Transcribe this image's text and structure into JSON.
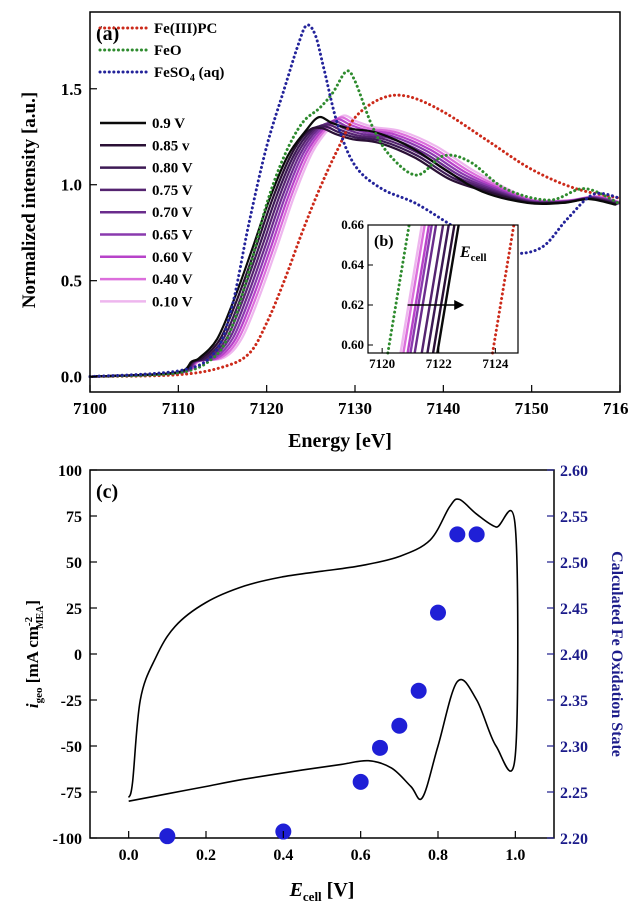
{
  "chart_data": [
    {
      "type": "line",
      "panel_label": "(a)",
      "xlabel": "Energy [eV]",
      "ylabel": "Normalized intensity [a.u.]",
      "xlim": [
        7100,
        7160
      ],
      "ylim": [
        -0.08,
        1.9
      ],
      "xticks": [
        "7100",
        "7110",
        "7120",
        "7130",
        "7140",
        "7150",
        "7160"
      ],
      "yticks": [
        "0.0",
        "0.5",
        "1.0",
        "1.5"
      ],
      "references": [
        {
          "name": "Fe(III)PC",
          "color": "#cc2a1a",
          "style": "dotted"
        },
        {
          "name": "FeO",
          "color": "#2e8b2e",
          "style": "dotted"
        },
        {
          "name": "FeSO",
          "name_sub": "4",
          "name_suffix": " (aq)",
          "color": "#23239a",
          "style": "dotted"
        }
      ],
      "potentials": [
        {
          "name": "0.9 V",
          "color": "#0a0a0a"
        },
        {
          "name": "0.85 v",
          "color": "#2a1035"
        },
        {
          "name": "0.80 V",
          "color": "#3d1a55"
        },
        {
          "name": "0.75 V",
          "color": "#552470"
        },
        {
          "name": "0.70 V",
          "color": "#6a2c8c"
        },
        {
          "name": "0.65 V",
          "color": "#8a3aae"
        },
        {
          "name": "0.60 V",
          "color": "#b743c9"
        },
        {
          "name": "0.40 V",
          "color": "#dc6fdc"
        },
        {
          "name": "0.10 V",
          "color": "#eeb6ee"
        }
      ],
      "curves": {
        "Fe(III)PC": [
          [
            7100,
            0
          ],
          [
            7110,
            0.01
          ],
          [
            7115,
            0.05
          ],
          [
            7118,
            0.12
          ],
          [
            7120,
            0.28
          ],
          [
            7122,
            0.5
          ],
          [
            7124,
            0.75
          ],
          [
            7126,
            0.98
          ],
          [
            7128,
            1.18
          ],
          [
            7130,
            1.35
          ],
          [
            7133,
            1.45
          ],
          [
            7136,
            1.46
          ],
          [
            7140,
            1.38
          ],
          [
            7145,
            1.23
          ],
          [
            7150,
            1.08
          ],
          [
            7155,
            0.98
          ],
          [
            7160,
            0.93
          ]
        ],
        "FeO": [
          [
            7100,
            0
          ],
          [
            7110,
            0.02
          ],
          [
            7114,
            0.1
          ],
          [
            7116,
            0.25
          ],
          [
            7118,
            0.55
          ],
          [
            7120,
            0.9
          ],
          [
            7122,
            1.15
          ],
          [
            7124,
            1.32
          ],
          [
            7126,
            1.4
          ],
          [
            7127.5,
            1.48
          ],
          [
            7129,
            1.59
          ],
          [
            7130,
            1.54
          ],
          [
            7132,
            1.3
          ],
          [
            7134,
            1.15
          ],
          [
            7137,
            1.05
          ],
          [
            7140,
            1.15
          ],
          [
            7143,
            1.12
          ],
          [
            7147,
            0.98
          ],
          [
            7152,
            0.92
          ],
          [
            7156,
            0.98
          ],
          [
            7160,
            0.9
          ]
        ],
        "FeSO4": [
          [
            7100,
            0
          ],
          [
            7110,
            0.03
          ],
          [
            7114,
            0.12
          ],
          [
            7116,
            0.35
          ],
          [
            7118,
            0.8
          ],
          [
            7120,
            1.2
          ],
          [
            7122,
            1.5
          ],
          [
            7123.5,
            1.72
          ],
          [
            7124.5,
            1.83
          ],
          [
            7125.5,
            1.78
          ],
          [
            7126.5,
            1.6
          ],
          [
            7128,
            1.32
          ],
          [
            7130,
            1.1
          ],
          [
            7133,
            0.98
          ],
          [
            7137,
            0.9
          ],
          [
            7142,
            0.76
          ],
          [
            7147,
            0.65
          ],
          [
            7151,
            0.67
          ],
          [
            7154,
            0.82
          ],
          [
            7157,
            0.95
          ],
          [
            7160,
            0.93
          ]
        ]
      },
      "inset": {
        "label": "(b)",
        "annotation": "E",
        "annotation_sub": "cell",
        "xlim": [
          7119.5,
          7124.8
        ],
        "ylim": [
          0.596,
          0.66
        ],
        "xticks": [
          "7120",
          "7122",
          "7124"
        ],
        "yticks": [
          "0.60",
          "0.62",
          "0.64",
          "0.66"
        ],
        "crossings_at_0_63": {
          "FeO": 7120.6,
          "0.10 V": 7121.05,
          "0.40 V": 7121.15,
          "0.60 V": 7121.3,
          "0.65 V": 7121.4,
          "0.70 V": 7121.55,
          "0.75 V": 7121.8,
          "0.80 V": 7122.0,
          "0.85 v": 7122.2,
          "0.9 V": 7122.35,
          "Fe(III)PC": 7124.3
        },
        "arrow": {
          "from": 7120.9,
          "to": 7122.9,
          "y": 0.62
        }
      }
    },
    {
      "type": "line+scatter",
      "panel_label": "(c)",
      "xlabel": "E",
      "xlabel_sub": "cell",
      "xlabel_suffix": " [V]",
      "ylabel": "i",
      "ylabel_sub": "geo",
      "ylabel_unit_pre": " [mA cm",
      "ylabel_unit_sup": "-2",
      "ylabel_unit_sub": "MEA",
      "ylabel_unit_post": "]",
      "y2label": "Calculated Fe Oxidation State",
      "xlim": [
        -0.1,
        1.1
      ],
      "ylim": [
        -100,
        100
      ],
      "y2lim": [
        2.2,
        2.6
      ],
      "xticks": [
        "0.0",
        "0.2",
        "0.4",
        "0.6",
        "0.8",
        "1.0"
      ],
      "yticks": [
        "-100",
        "-75",
        "-50",
        "-25",
        "0",
        "25",
        "50",
        "75",
        "100"
      ],
      "y2ticks": [
        "2.20",
        "2.25",
        "2.30",
        "2.35",
        "2.40",
        "2.45",
        "2.50",
        "2.55",
        "2.60"
      ],
      "cv_color": "#000000",
      "ox_color": "#1f1fd6",
      "axis2_color": "#1b1b8a",
      "cv_curve": [
        [
          0.0,
          -78
        ],
        [
          0.01,
          -70
        ],
        [
          0.03,
          -25
        ],
        [
          0.07,
          -2
        ],
        [
          0.12,
          15
        ],
        [
          0.2,
          28
        ],
        [
          0.3,
          37
        ],
        [
          0.4,
          42
        ],
        [
          0.5,
          45
        ],
        [
          0.6,
          48
        ],
        [
          0.7,
          53
        ],
        [
          0.78,
          62
        ],
        [
          0.83,
          80
        ],
        [
          0.855,
          84
        ],
        [
          0.9,
          76
        ],
        [
          0.95,
          69
        ],
        [
          1.0,
          69
        ],
        [
          1.0,
          -55
        ],
        [
          0.95,
          -50
        ],
        [
          0.9,
          -25
        ],
        [
          0.85,
          -15
        ],
        [
          0.8,
          -50
        ],
        [
          0.76,
          -78
        ],
        [
          0.73,
          -72
        ],
        [
          0.68,
          -62
        ],
        [
          0.62,
          -58
        ],
        [
          0.55,
          -60
        ],
        [
          0.45,
          -63
        ],
        [
          0.3,
          -68
        ],
        [
          0.2,
          -72
        ],
        [
          0.1,
          -76
        ],
        [
          0.0,
          -80
        ]
      ],
      "oxidation_state": [
        [
          0.1,
          2.202
        ],
        [
          0.4,
          2.207
        ],
        [
          0.6,
          2.261
        ],
        [
          0.65,
          2.298
        ],
        [
          0.7,
          2.322
        ],
        [
          0.75,
          2.36
        ],
        [
          0.8,
          2.445
        ],
        [
          0.85,
          2.53
        ],
        [
          0.9,
          2.53
        ]
      ]
    }
  ]
}
